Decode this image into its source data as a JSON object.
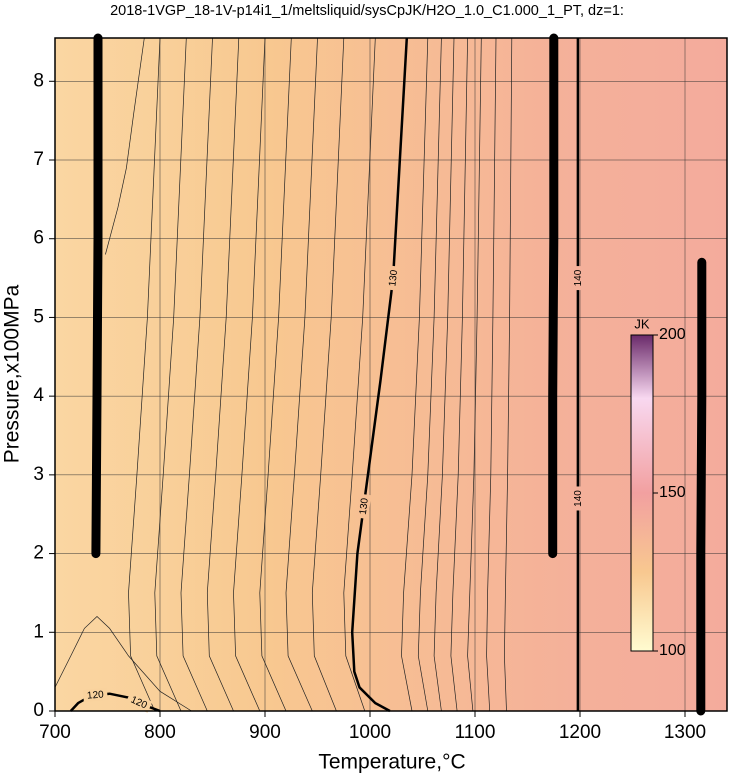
{
  "chart_data": {
    "type": "contour",
    "title": "2018-1VGP_18-1V-p14i1_1/meltsliquid/sysCpJK/H2O_1.0_C1.000_1_PT, dz=1:",
    "x_label": "Temperature,°C",
    "y_label": "Pressure,x100MPa",
    "xlim": [
      700,
      1340
    ],
    "ylim": [
      0,
      8.55
    ],
    "xticks": [
      700,
      800,
      900,
      1000,
      1100,
      1200,
      1300
    ],
    "yticks": [
      0,
      1,
      2,
      3,
      4,
      5,
      6,
      7,
      8
    ],
    "grid": true,
    "field": {
      "x": [
        700,
        800,
        900,
        1000,
        1100,
        1150,
        1200,
        1340
      ],
      "values": [
        118,
        121,
        125,
        130,
        135,
        138,
        140,
        143
      ]
    },
    "colormap": {
      "values": [
        100,
        125,
        150,
        180,
        200
      ],
      "colors": [
        "#fffbd0",
        "#f8c890",
        "#f2a0a0",
        "#f8d8f0",
        "#6a2a6a"
      ]
    },
    "colorbar": {
      "label": "JK",
      "lim": [
        100,
        200
      ],
      "ticks": [
        100,
        150,
        200
      ]
    },
    "labeled_contours": [
      {
        "level": 120,
        "x": [
          715,
          722,
          735,
          752,
          770,
          790,
          800
        ],
        "y": [
          0,
          0.1,
          0.2,
          0.22,
          0.17,
          0.05,
          0
        ]
      },
      {
        "level": 130,
        "x": [
          1035,
          1022,
          1010,
          998,
          988,
          983,
          985,
          990,
          1005,
          1019
        ],
        "y": [
          8.55,
          5.5,
          4.2,
          3,
          2,
          1,
          0.5,
          0.3,
          0.1,
          0
        ]
      },
      {
        "level": 140,
        "x": [
          1198,
          1198,
          1198,
          1198
        ],
        "y": [
          0,
          2.7,
          5.5,
          8.55
        ]
      }
    ],
    "contours": [
      {
        "x": [
          700,
          715,
          728,
          740,
          752,
          770,
          800,
          830
        ],
        "y": [
          0.3,
          0.7,
          1.05,
          1.2,
          1.05,
          0.7,
          0.25,
          0
        ]
      },
      {
        "x": [
          748,
          760,
          768,
          775,
          785
        ],
        "y": [
          5.8,
          6.4,
          6.9,
          7.6,
          8.55
        ]
      },
      {
        "x": [
          800,
          788,
          778,
          770,
          772,
          795
        ],
        "y": [
          8.55,
          5,
          3,
          1.5,
          0.7,
          0
        ]
      },
      {
        "x": [
          825,
          813,
          803,
          795,
          797,
          820
        ],
        "y": [
          8.55,
          5,
          3,
          1.5,
          0.7,
          0
        ]
      },
      {
        "x": [
          850,
          838,
          828,
          820,
          822,
          845
        ],
        "y": [
          8.55,
          5,
          3,
          1.5,
          0.7,
          0
        ]
      },
      {
        "x": [
          875,
          863,
          853,
          845,
          847,
          870
        ],
        "y": [
          8.55,
          5,
          3,
          1.5,
          0.7,
          0
        ]
      },
      {
        "x": [
          900,
          888,
          878,
          870,
          872,
          895
        ],
        "y": [
          8.55,
          5,
          3,
          1.5,
          0.7,
          0
        ]
      },
      {
        "x": [
          925,
          913,
          903,
          895,
          897,
          920
        ],
        "y": [
          8.55,
          5,
          3,
          1.5,
          0.7,
          0
        ]
      },
      {
        "x": [
          950,
          938,
          928,
          920,
          922,
          945
        ],
        "y": [
          8.55,
          5,
          3,
          1.5,
          0.7,
          0
        ]
      },
      {
        "x": [
          975,
          963,
          953,
          945,
          947,
          968
        ],
        "y": [
          8.55,
          5,
          3,
          1.5,
          0.7,
          0
        ]
      },
      {
        "x": [
          1005,
          993,
          983,
          975,
          977,
          995
        ],
        "y": [
          8.55,
          5,
          3,
          1.5,
          0.7,
          0
        ]
      },
      {
        "x": [
          1055,
          1047,
          1040,
          1032,
          1030,
          1040
        ],
        "y": [
          8.55,
          5,
          3,
          1.5,
          0.7,
          0
        ]
      },
      {
        "x": [
          1068,
          1061,
          1055,
          1048,
          1046,
          1055
        ],
        "y": [
          8.55,
          5,
          3,
          1.5,
          0.7,
          0
        ]
      },
      {
        "x": [
          1080,
          1074,
          1069,
          1063,
          1061,
          1068
        ],
        "y": [
          8.55,
          5,
          3,
          1.5,
          0.7,
          0
        ]
      },
      {
        "x": [
          1093,
          1088,
          1084,
          1079,
          1077,
          1083
        ],
        "y": [
          8.55,
          5,
          3,
          1.5,
          0.7,
          0
        ]
      },
      {
        "x": [
          1106,
          1102,
          1099,
          1095,
          1093,
          1098
        ],
        "y": [
          8.55,
          5,
          3,
          1.5,
          0.7,
          0
        ]
      },
      {
        "x": [
          1120,
          1117,
          1115,
          1112,
          1111,
          1114
        ],
        "y": [
          8.55,
          5,
          3,
          1.5,
          0.7,
          0
        ]
      },
      {
        "x": [
          1135,
          1133,
          1131,
          1129,
          1128,
          1130
        ],
        "y": [
          8.55,
          5,
          3,
          1.5,
          0.7,
          0
        ]
      }
    ],
    "bands": [
      {
        "x": [
          739,
          740,
          741,
          741
        ],
        "y": [
          2.0,
          4,
          6,
          8.55
        ]
      },
      {
        "x": [
          1174,
          1174,
          1175,
          1175
        ],
        "y": [
          2.0,
          4,
          6,
          8.55
        ]
      },
      {
        "x": [
          1315,
          1315,
          1316,
          1316
        ],
        "y": [
          0,
          2,
          4,
          5.7
        ]
      }
    ]
  }
}
